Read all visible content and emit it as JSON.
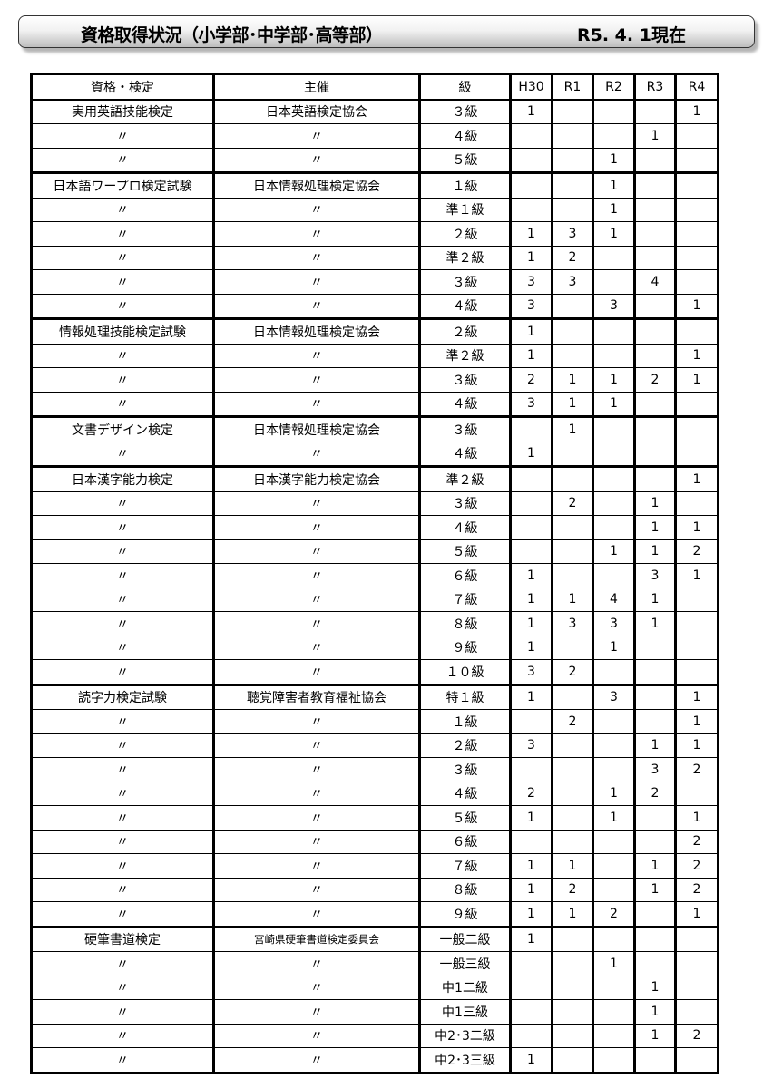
{
  "header": {
    "title": "資格取得状況（小学部･中学部･高等部）",
    "date": "R5. 4. 1現在"
  },
  "table": {
    "columns": [
      "資格・検定",
      "主催",
      "級",
      "H30",
      "R1",
      "R2",
      "R3",
      "R4"
    ],
    "rows": [
      [
        "実用英語技能検定",
        "日本英語検定協会",
        "３級",
        "1",
        "",
        "",
        "",
        "1"
      ],
      [
        "〃",
        "〃",
        "４級",
        "",
        "",
        "",
        "1",
        ""
      ],
      [
        "〃",
        "〃",
        "５級",
        "",
        "",
        "1",
        "",
        ""
      ],
      [
        "日本語ワープロ検定試験",
        "日本情報処理検定協会",
        "１級",
        "",
        "",
        "1",
        "",
        ""
      ],
      [
        "〃",
        "〃",
        "準１級",
        "",
        "",
        "1",
        "",
        ""
      ],
      [
        "〃",
        "〃",
        "２級",
        "1",
        "3",
        "1",
        "",
        ""
      ],
      [
        "〃",
        "〃",
        "準２級",
        "1",
        "2",
        "",
        "",
        ""
      ],
      [
        "〃",
        "〃",
        "３級",
        "3",
        "3",
        "",
        "4",
        ""
      ],
      [
        "〃",
        "〃",
        "４級",
        "3",
        "",
        "3",
        "",
        "1"
      ],
      [
        "情報処理技能検定試験",
        "日本情報処理検定協会",
        "２級",
        "1",
        "",
        "",
        "",
        ""
      ],
      [
        "〃",
        "〃",
        "準２級",
        "1",
        "",
        "",
        "",
        "1"
      ],
      [
        "〃",
        "〃",
        "３級",
        "2",
        "1",
        "1",
        "2",
        "1"
      ],
      [
        "〃",
        "〃",
        "４級",
        "3",
        "1",
        "1",
        "",
        ""
      ],
      [
        "文書デザイン検定",
        "日本情報処理検定協会",
        "３級",
        "",
        "1",
        "",
        "",
        ""
      ],
      [
        "〃",
        "〃",
        "４級",
        "1",
        "",
        "",
        "",
        ""
      ],
      [
        "日本漢字能力検定",
        "日本漢字能力検定協会",
        "準２級",
        "",
        "",
        "",
        "",
        "1"
      ],
      [
        "〃",
        "〃",
        "３級",
        "",
        "2",
        "",
        "1",
        ""
      ],
      [
        "〃",
        "〃",
        "４級",
        "",
        "",
        "",
        "1",
        "1"
      ],
      [
        "〃",
        "〃",
        "５級",
        "",
        "",
        "1",
        "1",
        "2"
      ],
      [
        "〃",
        "〃",
        "６級",
        "1",
        "",
        "",
        "3",
        "1"
      ],
      [
        "〃",
        "〃",
        "７級",
        "1",
        "1",
        "4",
        "1",
        ""
      ],
      [
        "〃",
        "〃",
        "８級",
        "1",
        "3",
        "3",
        "1",
        ""
      ],
      [
        "〃",
        "〃",
        "９級",
        "1",
        "",
        "1",
        "",
        ""
      ],
      [
        "〃",
        "〃",
        "１０級",
        "3",
        "2",
        "",
        "",
        ""
      ],
      [
        "読字力検定試験",
        "聴覚障害者教育福祉協会",
        "特１級",
        "1",
        "",
        "3",
        "",
        "1"
      ],
      [
        "〃",
        "〃",
        "１級",
        "",
        "2",
        "",
        "",
        "1"
      ],
      [
        "〃",
        "〃",
        "２級",
        "3",
        "",
        "",
        "1",
        "1"
      ],
      [
        "〃",
        "〃",
        "３級",
        "",
        "",
        "",
        "3",
        "2"
      ],
      [
        "〃",
        "〃",
        "４級",
        "2",
        "",
        "1",
        "2",
        ""
      ],
      [
        "〃",
        "〃",
        "５級",
        "1",
        "",
        "1",
        "",
        "1"
      ],
      [
        "〃",
        "〃",
        "６級",
        "",
        "",
        "",
        "",
        "2"
      ],
      [
        "〃",
        "〃",
        "７級",
        "1",
        "1",
        "",
        "1",
        "2"
      ],
      [
        "〃",
        "〃",
        "８級",
        "1",
        "2",
        "",
        "1",
        "2"
      ],
      [
        "〃",
        "〃",
        "９級",
        "1",
        "1",
        "2",
        "",
        "1"
      ],
      [
        "硬筆書道検定",
        "宮崎県硬筆書道検定委員会",
        "一般二級",
        "1",
        "",
        "",
        "",
        ""
      ],
      [
        "〃",
        "〃",
        "一般三級",
        "",
        "",
        "1",
        "",
        ""
      ],
      [
        "〃",
        "〃",
        "中1二級",
        "",
        "",
        "",
        "1",
        ""
      ],
      [
        "〃",
        "〃",
        "中1三級",
        "",
        "",
        "",
        "1",
        ""
      ],
      [
        "〃",
        "〃",
        "中2･3二級",
        "",
        "",
        "",
        "1",
        "2"
      ],
      [
        "〃",
        "〃",
        "中2･3三級",
        "1",
        "",
        "",
        "",
        ""
      ]
    ]
  }
}
